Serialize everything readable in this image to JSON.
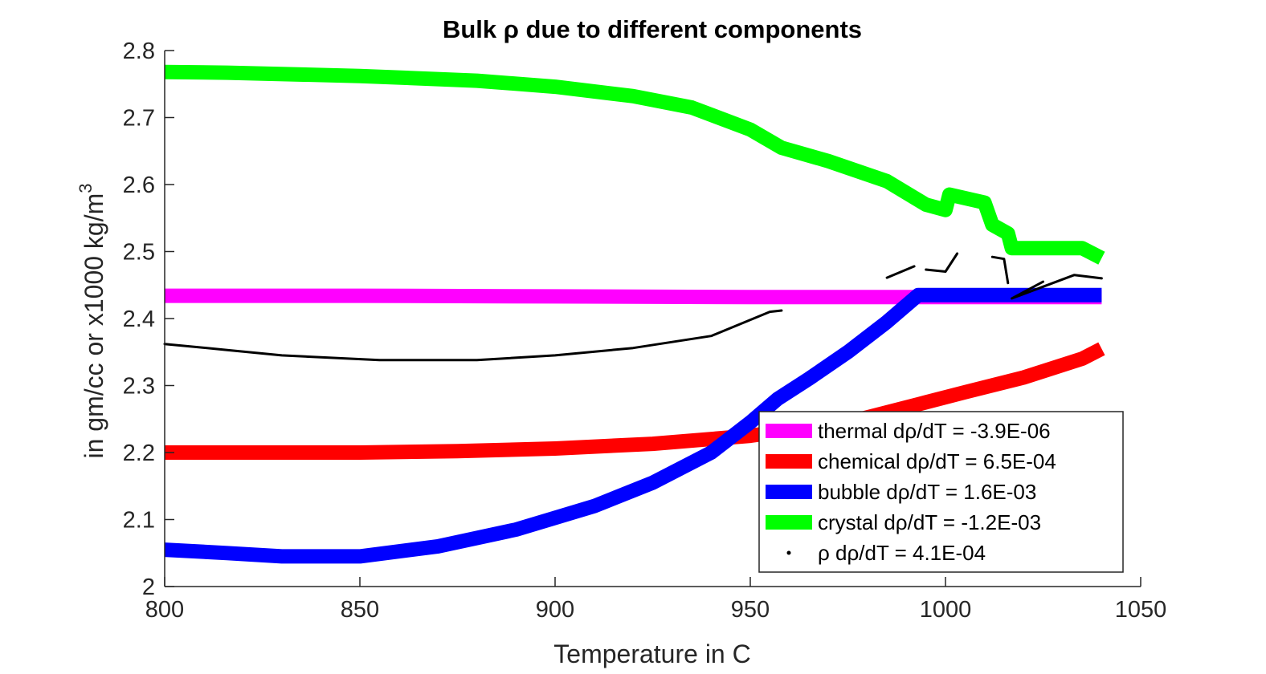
{
  "chart_data": {
    "type": "line",
    "title": "Bulk ρ due to different components",
    "xlabel": "Temperature in C",
    "ylabel": "in gm/cc or x1000 kg/m",
    "ylabel_superscript": "3",
    "xlim": [
      800,
      1050
    ],
    "ylim": [
      2,
      2.8
    ],
    "xticks": [
      800,
      850,
      900,
      950,
      1000,
      1050
    ],
    "yticks": [
      2,
      2.1,
      2.2,
      2.3,
      2.4,
      2.5,
      2.6,
      2.7,
      2.8
    ],
    "legend_position": "bottom-right",
    "series": [
      {
        "name": "thermal dρ/dT = -3.9E-06",
        "color": "#ff00ff",
        "style": "thick",
        "points": [
          [
            800,
            2.434
          ],
          [
            850,
            2.434
          ],
          [
            900,
            2.433
          ],
          [
            950,
            2.432
          ],
          [
            1000,
            2.432
          ],
          [
            1040,
            2.432
          ]
        ]
      },
      {
        "name": "chemical dρ/dT = 6.5E-04",
        "color": "#ff0000",
        "style": "thick",
        "points": [
          [
            800,
            2.2
          ],
          [
            850,
            2.2
          ],
          [
            875,
            2.202
          ],
          [
            900,
            2.206
          ],
          [
            925,
            2.213
          ],
          [
            950,
            2.225
          ],
          [
            975,
            2.245
          ],
          [
            995,
            2.275
          ],
          [
            1005,
            2.29
          ],
          [
            1020,
            2.312
          ],
          [
            1035,
            2.34
          ],
          [
            1040,
            2.355
          ]
        ]
      },
      {
        "name": "bubble dρ/dT = 1.6E-03",
        "color": "#0000ff",
        "style": "thick",
        "points": [
          [
            800,
            2.055
          ],
          [
            816,
            2.05
          ],
          [
            830,
            2.045
          ],
          [
            850,
            2.045
          ],
          [
            870,
            2.06
          ],
          [
            890,
            2.085
          ],
          [
            910,
            2.12
          ],
          [
            925,
            2.155
          ],
          [
            940,
            2.2
          ],
          [
            950,
            2.245
          ],
          [
            957,
            2.28
          ],
          [
            965,
            2.31
          ],
          [
            975,
            2.35
          ],
          [
            985,
            2.395
          ],
          [
            993,
            2.435
          ],
          [
            1040,
            2.435
          ]
        ]
      },
      {
        "name": "crystal dρ/dT = -1.2E-03",
        "color": "#00ff00",
        "style": "thick",
        "points": [
          [
            800,
            2.768
          ],
          [
            816,
            2.767
          ],
          [
            850,
            2.762
          ],
          [
            880,
            2.755
          ],
          [
            900,
            2.746
          ],
          [
            920,
            2.732
          ],
          [
            935,
            2.715
          ],
          [
            950,
            2.682
          ],
          [
            958,
            2.655
          ],
          [
            970,
            2.635
          ],
          [
            985,
            2.605
          ],
          [
            995,
            2.57
          ],
          [
            1000,
            2.562
          ],
          [
            1001,
            2.585
          ],
          [
            1010,
            2.573
          ],
          [
            1012,
            2.54
          ],
          [
            1016,
            2.527
          ],
          [
            1017,
            2.505
          ],
          [
            1035,
            2.505
          ],
          [
            1040,
            2.49
          ]
        ]
      },
      {
        "name": "ρ dρ/dT = 4.1E-04",
        "color": "#000000",
        "style": "dots",
        "points": [
          [
            800,
            2.362
          ],
          [
            816,
            2.353
          ],
          [
            830,
            2.345
          ],
          [
            855,
            2.338
          ],
          [
            880,
            2.338
          ],
          [
            900,
            2.345
          ],
          [
            920,
            2.356
          ],
          [
            940,
            2.374
          ],
          [
            955,
            2.41
          ],
          [
            958,
            2.412
          ],
          [
            975,
            2.44
          ],
          [
            985,
            2.461
          ],
          [
            992,
            2.478
          ],
          [
            995,
            2.473
          ],
          [
            1000,
            2.47
          ],
          [
            1003,
            2.497
          ],
          [
            1012,
            2.492
          ],
          [
            1015,
            2.489
          ],
          [
            1016,
            2.453
          ],
          [
            1025,
            2.455
          ],
          [
            1017,
            2.43
          ],
          [
            1033,
            2.465
          ],
          [
            1040,
            2.46
          ]
        ],
        "segments": [
          [
            0,
            10
          ],
          [
            11,
            13
          ],
          [
            13,
            16
          ],
          [
            16,
            19
          ],
          [
            19,
            23
          ]
        ]
      }
    ]
  }
}
